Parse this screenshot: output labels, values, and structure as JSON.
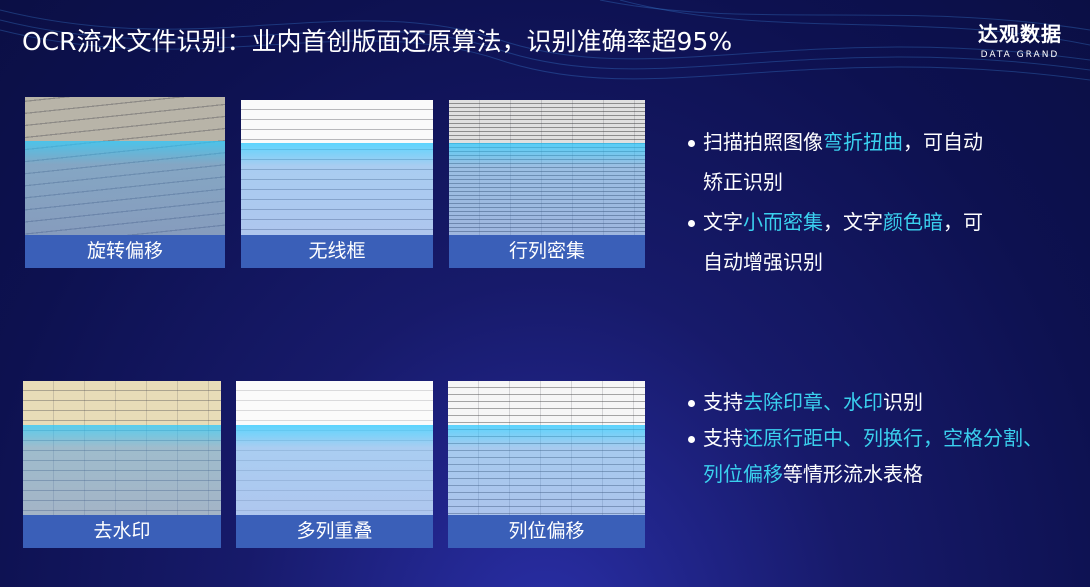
{
  "header": {
    "title": "OCR流水文件识别：业内首创版面还原算法，识别准确率超95%",
    "logo_cn": "达观数据",
    "logo_en": "DATA GRAND"
  },
  "cards": [
    {
      "label": "旋转偏移"
    },
    {
      "label": "无线框"
    },
    {
      "label": "行列密集"
    },
    {
      "label": "去水印"
    },
    {
      "label": "多列重叠"
    },
    {
      "label": "列位偏移"
    }
  ],
  "bullets_top": [
    {
      "line1": [
        {
          "t": "扫描拍照图像"
        },
        {
          "t": "弯折扭曲",
          "hl": true
        },
        {
          "t": "，可自动"
        }
      ],
      "line2": [
        {
          "t": "矫正识别"
        }
      ]
    },
    {
      "line1": [
        {
          "t": "文字"
        },
        {
          "t": "小而密集",
          "hl": true
        },
        {
          "t": "，文字"
        },
        {
          "t": "颜色暗",
          "hl": true
        },
        {
          "t": "，可"
        }
      ],
      "line2": [
        {
          "t": "自动增强识别"
        }
      ]
    }
  ],
  "bullets_bottom": [
    {
      "line1": [
        {
          "t": "支持"
        },
        {
          "t": "去除印章、水印",
          "hl": true
        },
        {
          "t": "识别"
        }
      ]
    },
    {
      "line1": [
        {
          "t": "支持"
        },
        {
          "t": "还原行距中、列换行，空格分割、",
          "hl": true
        }
      ],
      "line2": [
        {
          "t": "列位偏移",
          "hl": true
        },
        {
          "t": "等情形流水表格"
        }
      ]
    }
  ],
  "colors": {
    "highlight": "#3ad0ee",
    "label_bar": "#3a5fb8",
    "background": "#0d1150"
  }
}
